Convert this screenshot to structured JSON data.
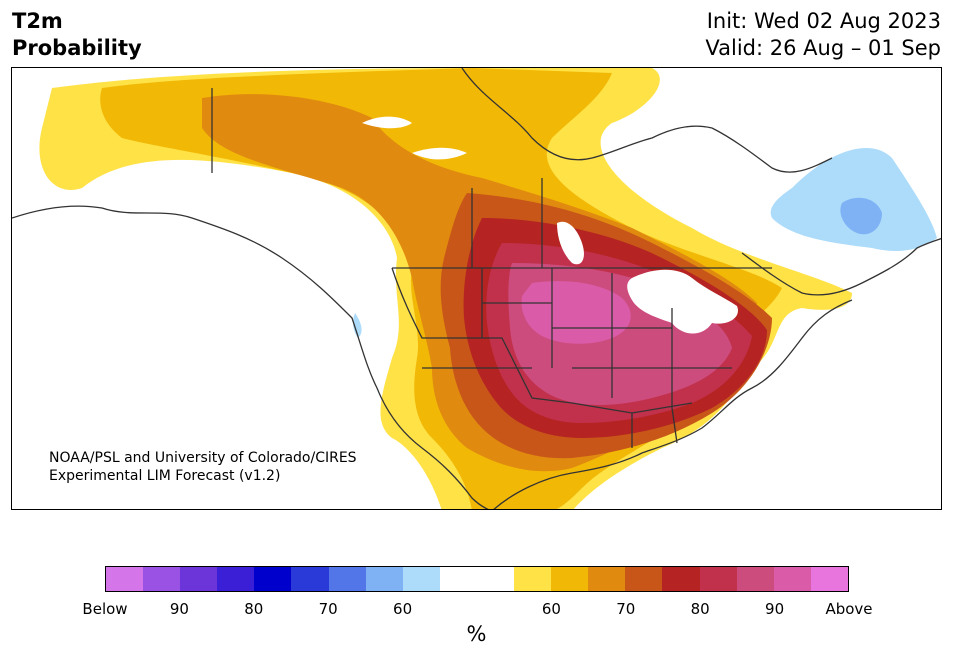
{
  "title": {
    "line1": "T2m",
    "line2": "Probability"
  },
  "header": {
    "init": "Init: Wed 02 Aug 2023",
    "valid": "Valid: 26 Aug – 01 Sep"
  },
  "credit": {
    "line1": "NOAA/PSL and University of Colorado/CIRES",
    "line2": "Experimental LIM Forecast (v1.2)"
  },
  "colorbar": {
    "colors": [
      "#d575ea",
      "#9a52e4",
      "#6c35d9",
      "#3b1fd6",
      "#0000cc",
      "#2a3ad8",
      "#5276e8",
      "#7eb2f5",
      "#addcfb",
      "#ffffff",
      "#ffffff",
      "#ffe246",
      "#f2b806",
      "#e08a10",
      "#c85618",
      "#b52323",
      "#c2314c",
      "#cd4c7e",
      "#da5ca8",
      "#e875de"
    ],
    "tick_labels": [
      "Below",
      "90",
      "80",
      "70",
      "60",
      "60",
      "70",
      "80",
      "90",
      "Above"
    ],
    "unit": "%"
  },
  "map_colors": {
    "p60": "#ffe246",
    "p70": "#f2b806",
    "p80": "#e08a10",
    "p90": "#c85618",
    "p100": "#b52323",
    "p110": "#c2314c",
    "p120": "#cd4c7e",
    "p130": "#da5ca8",
    "b60": "#addcfb",
    "b70": "#7eb2f5"
  }
}
